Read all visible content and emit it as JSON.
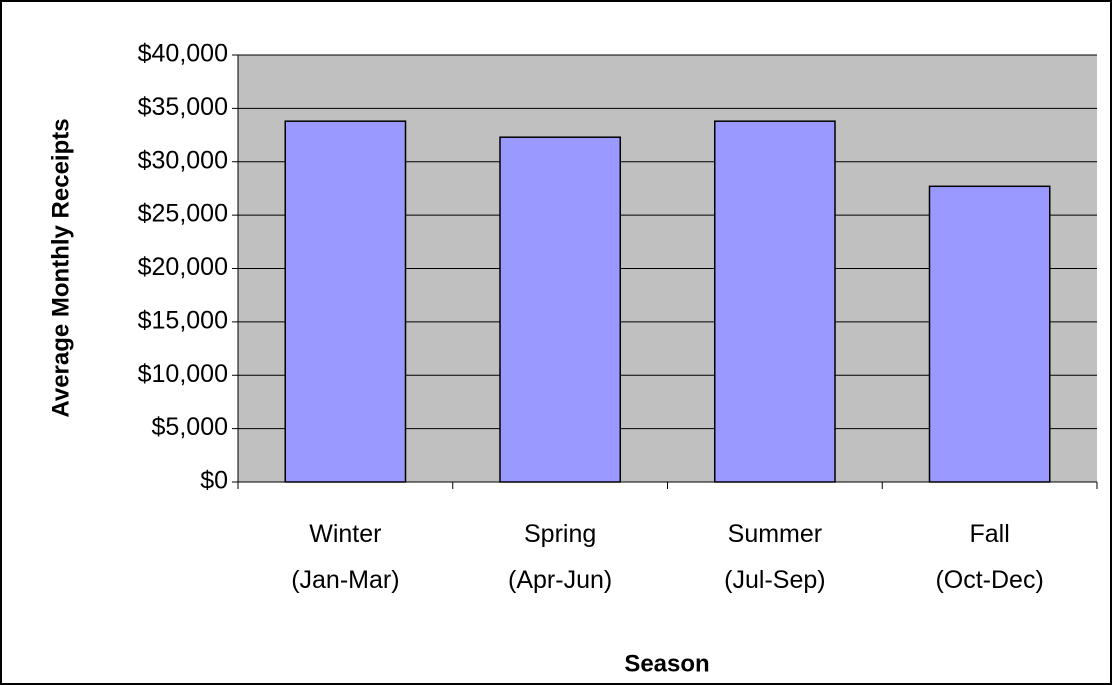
{
  "chart_data": {
    "type": "bar",
    "x_label": "Season",
    "y_label": "Average Monthly Receipts",
    "categories": [
      "Winter\n(Jan-Mar)",
      "Spring\n(Apr-Jun)",
      "Summer\n(Jul-Sep)",
      "Fall\n(Oct-Dec)"
    ],
    "values": [
      33800,
      32300,
      33800,
      27700
    ],
    "color": "#9999ff",
    "ylim": [
      0,
      40000
    ],
    "yticks": [
      {
        "value": 0,
        "label": "$0"
      },
      {
        "value": 5000,
        "label": "$5,000"
      },
      {
        "value": 10000,
        "label": "$10,000"
      },
      {
        "value": 15000,
        "label": "$15,000"
      },
      {
        "value": 20000,
        "label": "$20,000"
      },
      {
        "value": 25000,
        "label": "$25,000"
      },
      {
        "value": 30000,
        "label": "$30,000"
      },
      {
        "value": 35000,
        "label": "$35,000"
      },
      {
        "value": 40000,
        "label": "$40,000"
      }
    ],
    "grid": true
  }
}
